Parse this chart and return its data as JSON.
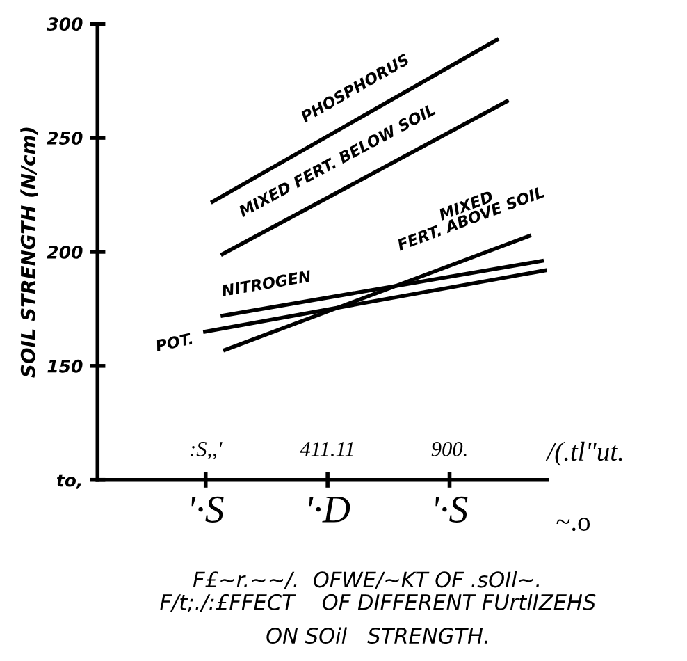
{
  "chart_data": {
    "type": "line",
    "title": "F/t;./:£FFECT    OF DIFFERENT FUrtlIZEHS\nON SOil   STRENGTH.",
    "xlabel": "/(.tl\"ut.",
    "ylabel": "SOIL STRENGTH (N/cm)",
    "annotations": [
      "'·S",
      "'·D",
      "'·S",
      "~.o",
      "F£~r.~~/.  OFWE/~KT OF .sOIl~."
    ],
    "xlim": [
      -511,
      1290
    ],
    "ylim": [
      100,
      300
    ],
    "xticks": [
      {
        "value": -77.78,
        "label": ":S,,'"
      },
      411.11,
      {
        "value": 900,
        "label": "900."
      }
    ],
    "yticks": [
      {
        "value": 100,
        "label": "to,"
      },
      150,
      200,
      250,
      300
    ],
    "series": [
      {
        "name": "PHOSPHORUS",
        "color": "#000000",
        "x": [
          -50,
          1090
        ],
        "values": [
          222,
          293
        ]
      },
      {
        "name": "MIXED FERT. BELOW SOIL",
        "color": "#000000",
        "x": [
          -10,
          1130
        ],
        "values": [
          199,
          266
        ]
      },
      {
        "name": "MIXED\nFERT. ABOVE SOIL",
        "color": "#000000",
        "x": [
          0,
          1220
        ],
        "values": [
          157,
          207
        ]
      },
      {
        "name": "NITROGEN",
        "color": "#000000",
        "x": [
          -10,
          1270
        ],
        "values": [
          172,
          196
        ]
      },
      {
        "name": "POT.",
        "color": "#000000",
        "x": [
          -80,
          1290
        ],
        "values": [
          165,
          192
        ]
      }
    ]
  }
}
